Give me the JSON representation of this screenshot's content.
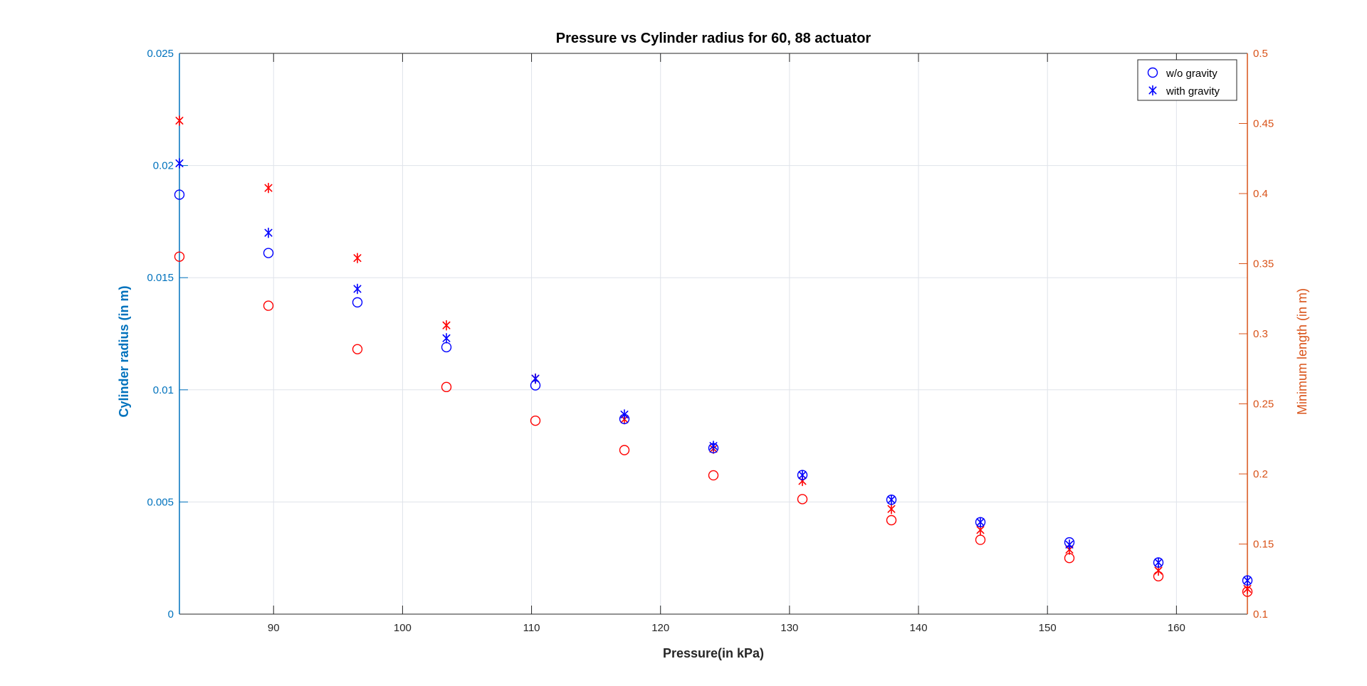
{
  "chart_data": {
    "type": "scatter",
    "title": "Pressure vs Cylinder radius for 60, 88 actuator",
    "xlabel": "Pressure(in kPa)",
    "ylabel_left": "Cylinder radius (in m)",
    "ylabel_right": "Minimum length (in m)",
    "xlim": [
      82.7,
      165.5
    ],
    "ylim_left": [
      0,
      0.025
    ],
    "ylim_right": [
      0.1,
      0.5
    ],
    "x_ticks": [
      "90",
      "100",
      "110",
      "120",
      "130",
      "140",
      "150",
      "160"
    ],
    "x_tick_values": [
      90,
      100,
      110,
      120,
      130,
      140,
      150,
      160
    ],
    "y_left_ticks": [
      "0",
      "0.005",
      "0.01",
      "0.015",
      "0.02",
      "0.025"
    ],
    "y_left_tick_values": [
      0,
      0.005,
      0.01,
      0.015,
      0.02,
      0.025
    ],
    "y_right_ticks": [
      "0.1",
      "0.15",
      "0.2",
      "0.25",
      "0.3",
      "0.35",
      "0.4",
      "0.45",
      "0.5"
    ],
    "y_right_tick_values": [
      0.1,
      0.15,
      0.2,
      0.25,
      0.3,
      0.35,
      0.4,
      0.45,
      0.5
    ],
    "grid": true,
    "legend_position": "top-right",
    "legend": [
      "w/o gravity",
      "with gravity"
    ],
    "colors": {
      "left_axis": "#0072BD",
      "right_axis": "#D95319",
      "blue_series": "#0000FF",
      "red_series": "#FF0000",
      "grid": "#DFE3EA"
    },
    "x": [
      82.7,
      89.6,
      96.5,
      103.4,
      110.3,
      117.2,
      124.1,
      131.0,
      137.9,
      144.8,
      151.7,
      158.6,
      165.5
    ],
    "series": [
      {
        "name": "w/o gravity",
        "axis": "left",
        "marker": "circle",
        "color": "blue",
        "values": [
          0.0187,
          0.0161,
          0.0139,
          0.0119,
          0.0102,
          0.0087,
          0.0074,
          0.0062,
          0.0051,
          0.0041,
          0.0032,
          0.0023,
          0.0015
        ]
      },
      {
        "name": "with gravity",
        "axis": "left",
        "marker": "asterisk",
        "color": "blue",
        "values": [
          0.0201,
          0.017,
          0.0145,
          0.0123,
          0.0105,
          0.0089,
          0.0075,
          0.0062,
          0.0051,
          0.0041,
          0.0031,
          0.0023,
          0.0015
        ]
      },
      {
        "axis": "right",
        "marker": "circle",
        "color": "red",
        "values": [
          0.355,
          0.32,
          0.289,
          0.262,
          0.238,
          0.217,
          0.199,
          0.182,
          0.167,
          0.153,
          0.14,
          0.127,
          0.116
        ]
      },
      {
        "axis": "right",
        "marker": "asterisk",
        "color": "red",
        "values": [
          0.452,
          0.404,
          0.354,
          0.306,
          0.268,
          0.239,
          0.218,
          0.195,
          0.175,
          0.16,
          0.146,
          0.131,
          0.118
        ]
      }
    ]
  }
}
